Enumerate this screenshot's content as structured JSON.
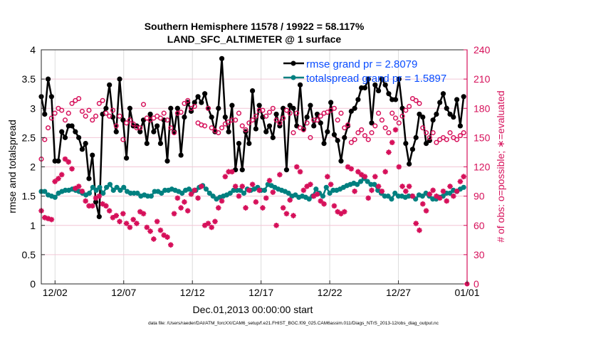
{
  "chart_data": {
    "type": "line",
    "title": "Southern Hemisphere 11578 / 19922 = 58.117%",
    "subtitle": "LAND_SFC_ALTIMETER @ 1 surface",
    "xlabel": "Dec.01,2013 00:00:00 start",
    "ylabel": "rmse and totalspread",
    "y2label": "# of obs: o=possible; ∗=evaluated",
    "footer": "data file: /Users/raeder/DAI/ATM_forcXX/CAM6_setup/f.e21.FHIST_BGC.f09_025.CAM6assim.011/Diags_NTrS_2013-12/obs_diag_output.nc",
    "xlim_days": [
      0,
      31
    ],
    "ylim": [
      0,
      4
    ],
    "y2lim": [
      0,
      240
    ],
    "xticks": [
      {
        "day": 1,
        "label": "12/02"
      },
      {
        "day": 6,
        "label": "12/07"
      },
      {
        "day": 11,
        "label": "12/12"
      },
      {
        "day": 16,
        "label": "12/17"
      },
      {
        "day": 21,
        "label": "12/22"
      },
      {
        "day": 26,
        "label": "12/27"
      },
      {
        "day": 31,
        "label": "01/01"
      }
    ],
    "yticks": [
      "0",
      "0.5",
      "1",
      "1.5",
      "2",
      "2.5",
      "3",
      "3.5",
      "4"
    ],
    "y2ticks": [
      "0",
      "30",
      "60",
      "90",
      "120",
      "150",
      "180",
      "210",
      "240"
    ],
    "grid": true,
    "legend_position": "top-right",
    "colors": {
      "rmse": "#000000",
      "totalspread": "#008080",
      "obs": "#d6105a",
      "legend_text": "#0a4dff"
    },
    "series": [
      {
        "name": "rmse grand pr = 2.8079",
        "axis": "left",
        "values": [
          3.2,
          2.9,
          3.5,
          3.2,
          2.1,
          2.1,
          2.6,
          2.5,
          2.7,
          2.7,
          2.6,
          2.5,
          2.3,
          2.4,
          1.8,
          2.2,
          1.4,
          1.15,
          2.9,
          3.0,
          3.4,
          2.85,
          2.6,
          3.5,
          2.8,
          2.15,
          3.0,
          2.7,
          2.7,
          2.6,
          2.8,
          2.4,
          2.9,
          2.6,
          2.7,
          2.4,
          2.8,
          2.1,
          3.0,
          2.6,
          3.0,
          2.2,
          2.85,
          3.1,
          2.95,
          3.1,
          3.2,
          3.1,
          3.25,
          3.0,
          2.85,
          2.6,
          3.0,
          3.85,
          2.85,
          2.6,
          3.05,
          1.95,
          2.4,
          1.95,
          2.6,
          2.4,
          3.3,
          2.65,
          3.05,
          2.85,
          2.6,
          2.7,
          2.5,
          2.9,
          2.7,
          3.0,
          1.95,
          3.05,
          3.0,
          2.7,
          3.4,
          2.65,
          2.85,
          3.05,
          2.7,
          2.9,
          2.75,
          2.4,
          2.6,
          3.1,
          2.55,
          2.45,
          2.1,
          2.5,
          2.7,
          2.95,
          3.0,
          3.15,
          3.35,
          3.35,
          3.5,
          2.75,
          3.4,
          3.3,
          3.5,
          3.4,
          3.25,
          3.15,
          3.15,
          3.5,
          3.0,
          2.4,
          2.05,
          2.3,
          2.5,
          2.9,
          2.85,
          2.4,
          2.45,
          2.8,
          2.9,
          3.1,
          3.25,
          3.0,
          2.9,
          2.85,
          3.15,
          2.7,
          3.2
        ]
      },
      {
        "name": "totalspread grand pr = 1.5897",
        "axis": "left",
        "values": [
          1.58,
          1.58,
          1.52,
          1.5,
          1.48,
          1.55,
          1.58,
          1.6,
          1.6,
          1.62,
          1.6,
          1.58,
          1.55,
          1.52,
          1.55,
          1.65,
          1.6,
          1.65,
          1.55,
          1.65,
          1.7,
          1.6,
          1.65,
          1.6,
          1.65,
          1.58,
          1.55,
          1.55,
          1.55,
          1.5,
          1.52,
          1.5,
          1.5,
          1.58,
          1.58,
          1.55,
          1.6,
          1.6,
          1.62,
          1.6,
          1.58,
          1.55,
          1.6,
          1.62,
          1.58,
          1.6,
          1.65,
          1.68,
          1.62,
          1.55,
          1.5,
          1.45,
          1.48,
          1.5,
          1.52,
          1.55,
          1.6,
          1.6,
          1.6,
          1.55,
          1.62,
          1.6,
          1.62,
          1.65,
          1.6,
          1.6,
          1.7,
          1.68,
          1.65,
          1.62,
          1.6,
          1.58,
          1.55,
          1.5,
          1.52,
          1.48,
          1.5,
          1.48,
          1.45,
          1.5,
          1.62,
          1.55,
          1.5,
          1.65,
          1.55,
          1.6,
          1.6,
          1.62,
          1.65,
          1.68,
          1.7,
          1.72,
          1.7,
          1.75,
          1.8,
          1.75,
          1.7,
          1.7,
          1.6,
          1.55,
          1.5,
          1.5,
          1.45,
          1.55,
          1.5,
          1.5,
          1.48,
          1.5,
          1.5,
          1.45,
          1.52,
          1.5,
          1.55,
          1.5,
          1.45,
          1.45,
          1.48,
          1.5,
          1.55,
          1.55,
          1.6,
          1.58,
          1.62,
          1.65
        ]
      },
      {
        "name": "possible",
        "axis": "right",
        "marker": "circle",
        "values": [
          128,
          148,
          160,
          170,
          175,
          180,
          178,
          168,
          175,
          185,
          188,
          190,
          177,
          172,
          178,
          168,
          172,
          185,
          188,
          175,
          172,
          178,
          162,
          172,
          148,
          165,
          168,
          164,
          160,
          160,
          184,
          170,
          168,
          170,
          172,
          170,
          175,
          168,
          160,
          155,
          175,
          176,
          185,
          188,
          180,
          182,
          165,
          163,
          162,
          180,
          160,
          157,
          155,
          160,
          164,
          166,
          168,
          168,
          175,
          162,
          158,
          165,
          168,
          172,
          178,
          178,
          172,
          176,
          180,
          168,
          165,
          170,
          178,
          175,
          155,
          175,
          160,
          158,
          165,
          150,
          168,
          168,
          172,
          175,
          176,
          178,
          180,
          168,
          175,
          160,
          163,
          145,
          148,
          155,
          158,
          152,
          148,
          155,
          162,
          175,
          168,
          160,
          155,
          175,
          170,
          165,
          172,
          178,
          182,
          190,
          188,
          185,
          160,
          155,
          150,
          155,
          145,
          148,
          150,
          148,
          155,
          150,
          148,
          152,
          155
        ]
      },
      {
        "name": "evaluated",
        "axis": "right",
        "marker": "asterisk",
        "values": [
          75,
          68,
          67,
          66,
          105,
          108,
          112,
          128,
          125,
          118,
          98,
          100,
          95,
          85,
          80,
          80,
          88,
          90,
          82,
          80,
          75,
          68,
          70,
          64,
          72,
          62,
          58,
          66,
          62,
          74,
          72,
          58,
          54,
          46,
          64,
          55,
          50,
          48,
          40,
          72,
          88,
          78,
          84,
          75,
          92,
          96,
          88,
          100,
          60,
          62,
          58,
          64,
          78,
          85,
          110,
          115,
          115,
          100,
          90,
          100,
          78,
          96,
          102,
          84,
          96,
          78,
          88,
          106,
          94,
          60,
          112,
          78,
          72,
          86,
          70,
          120,
          115,
          96,
          100,
          102,
          90,
          92,
          85,
          82,
          110,
          102,
          80,
          74,
          72,
          74,
          120,
          118,
          95,
          115,
          112,
          110,
          88,
          96,
          110,
          100,
          95,
          115,
          135,
          145,
          158,
          120,
          100,
          95,
          100,
          90,
          62,
          55,
          82,
          75,
          92,
          96,
          90,
          88,
          95,
          85,
          100,
          90,
          95,
          105,
          110
        ]
      }
    ]
  }
}
